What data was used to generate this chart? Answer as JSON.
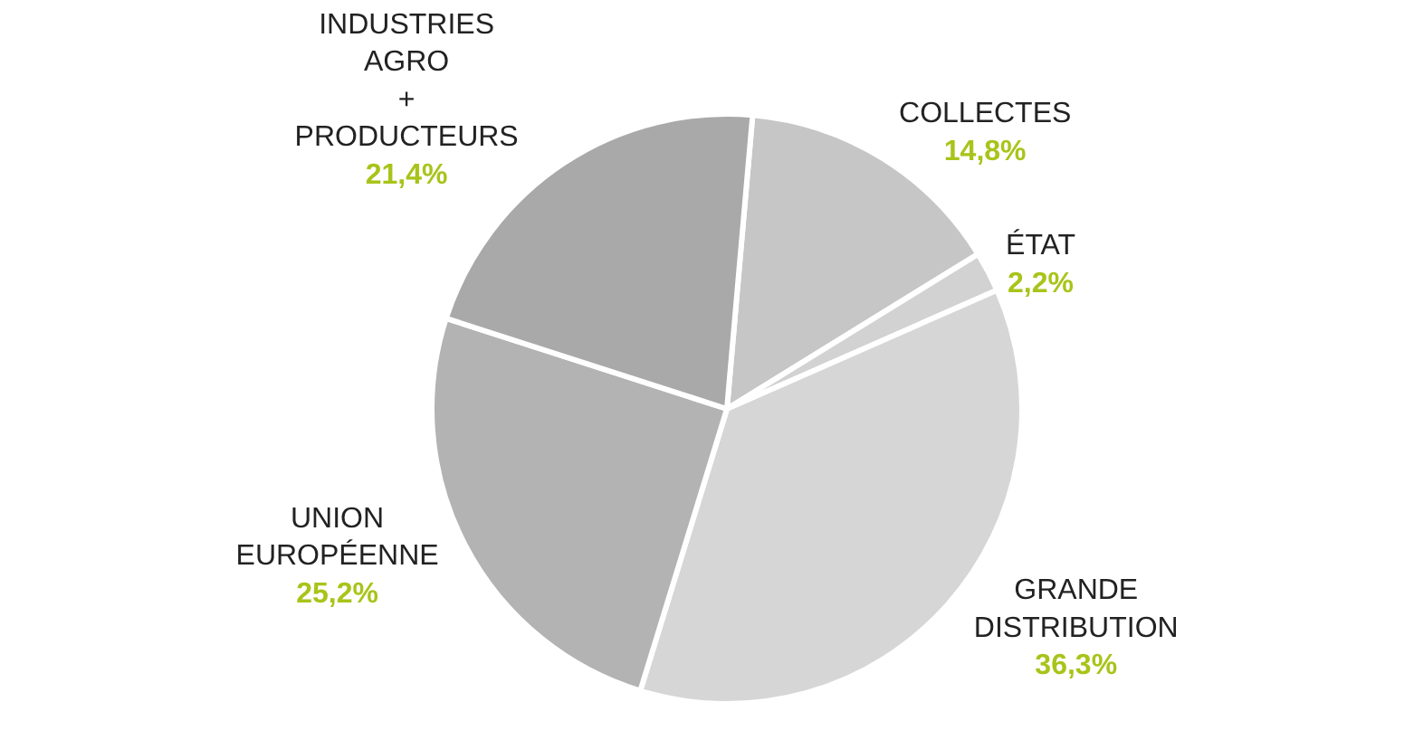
{
  "chart_data": {
    "type": "pie",
    "categories": [
      "COLLECTES",
      "ÉTAT",
      "GRANDE\nDISTRIBUTION",
      "UNION\nEUROPÉENNE",
      "INDUSTRIES\nAGRO\n+\nPRODUCTEURS"
    ],
    "values": [
      14.8,
      2.2,
      36.3,
      25.2,
      21.4
    ],
    "value_labels": [
      "14,8%",
      "2,2%",
      "36,3%",
      "25,2%",
      "21,4%"
    ],
    "colors": [
      "#c6c6c6",
      "#d2d2d2",
      "#d6d6d6",
      "#b3b3b3",
      "#a9a9a9"
    ],
    "legend": false
  }
}
